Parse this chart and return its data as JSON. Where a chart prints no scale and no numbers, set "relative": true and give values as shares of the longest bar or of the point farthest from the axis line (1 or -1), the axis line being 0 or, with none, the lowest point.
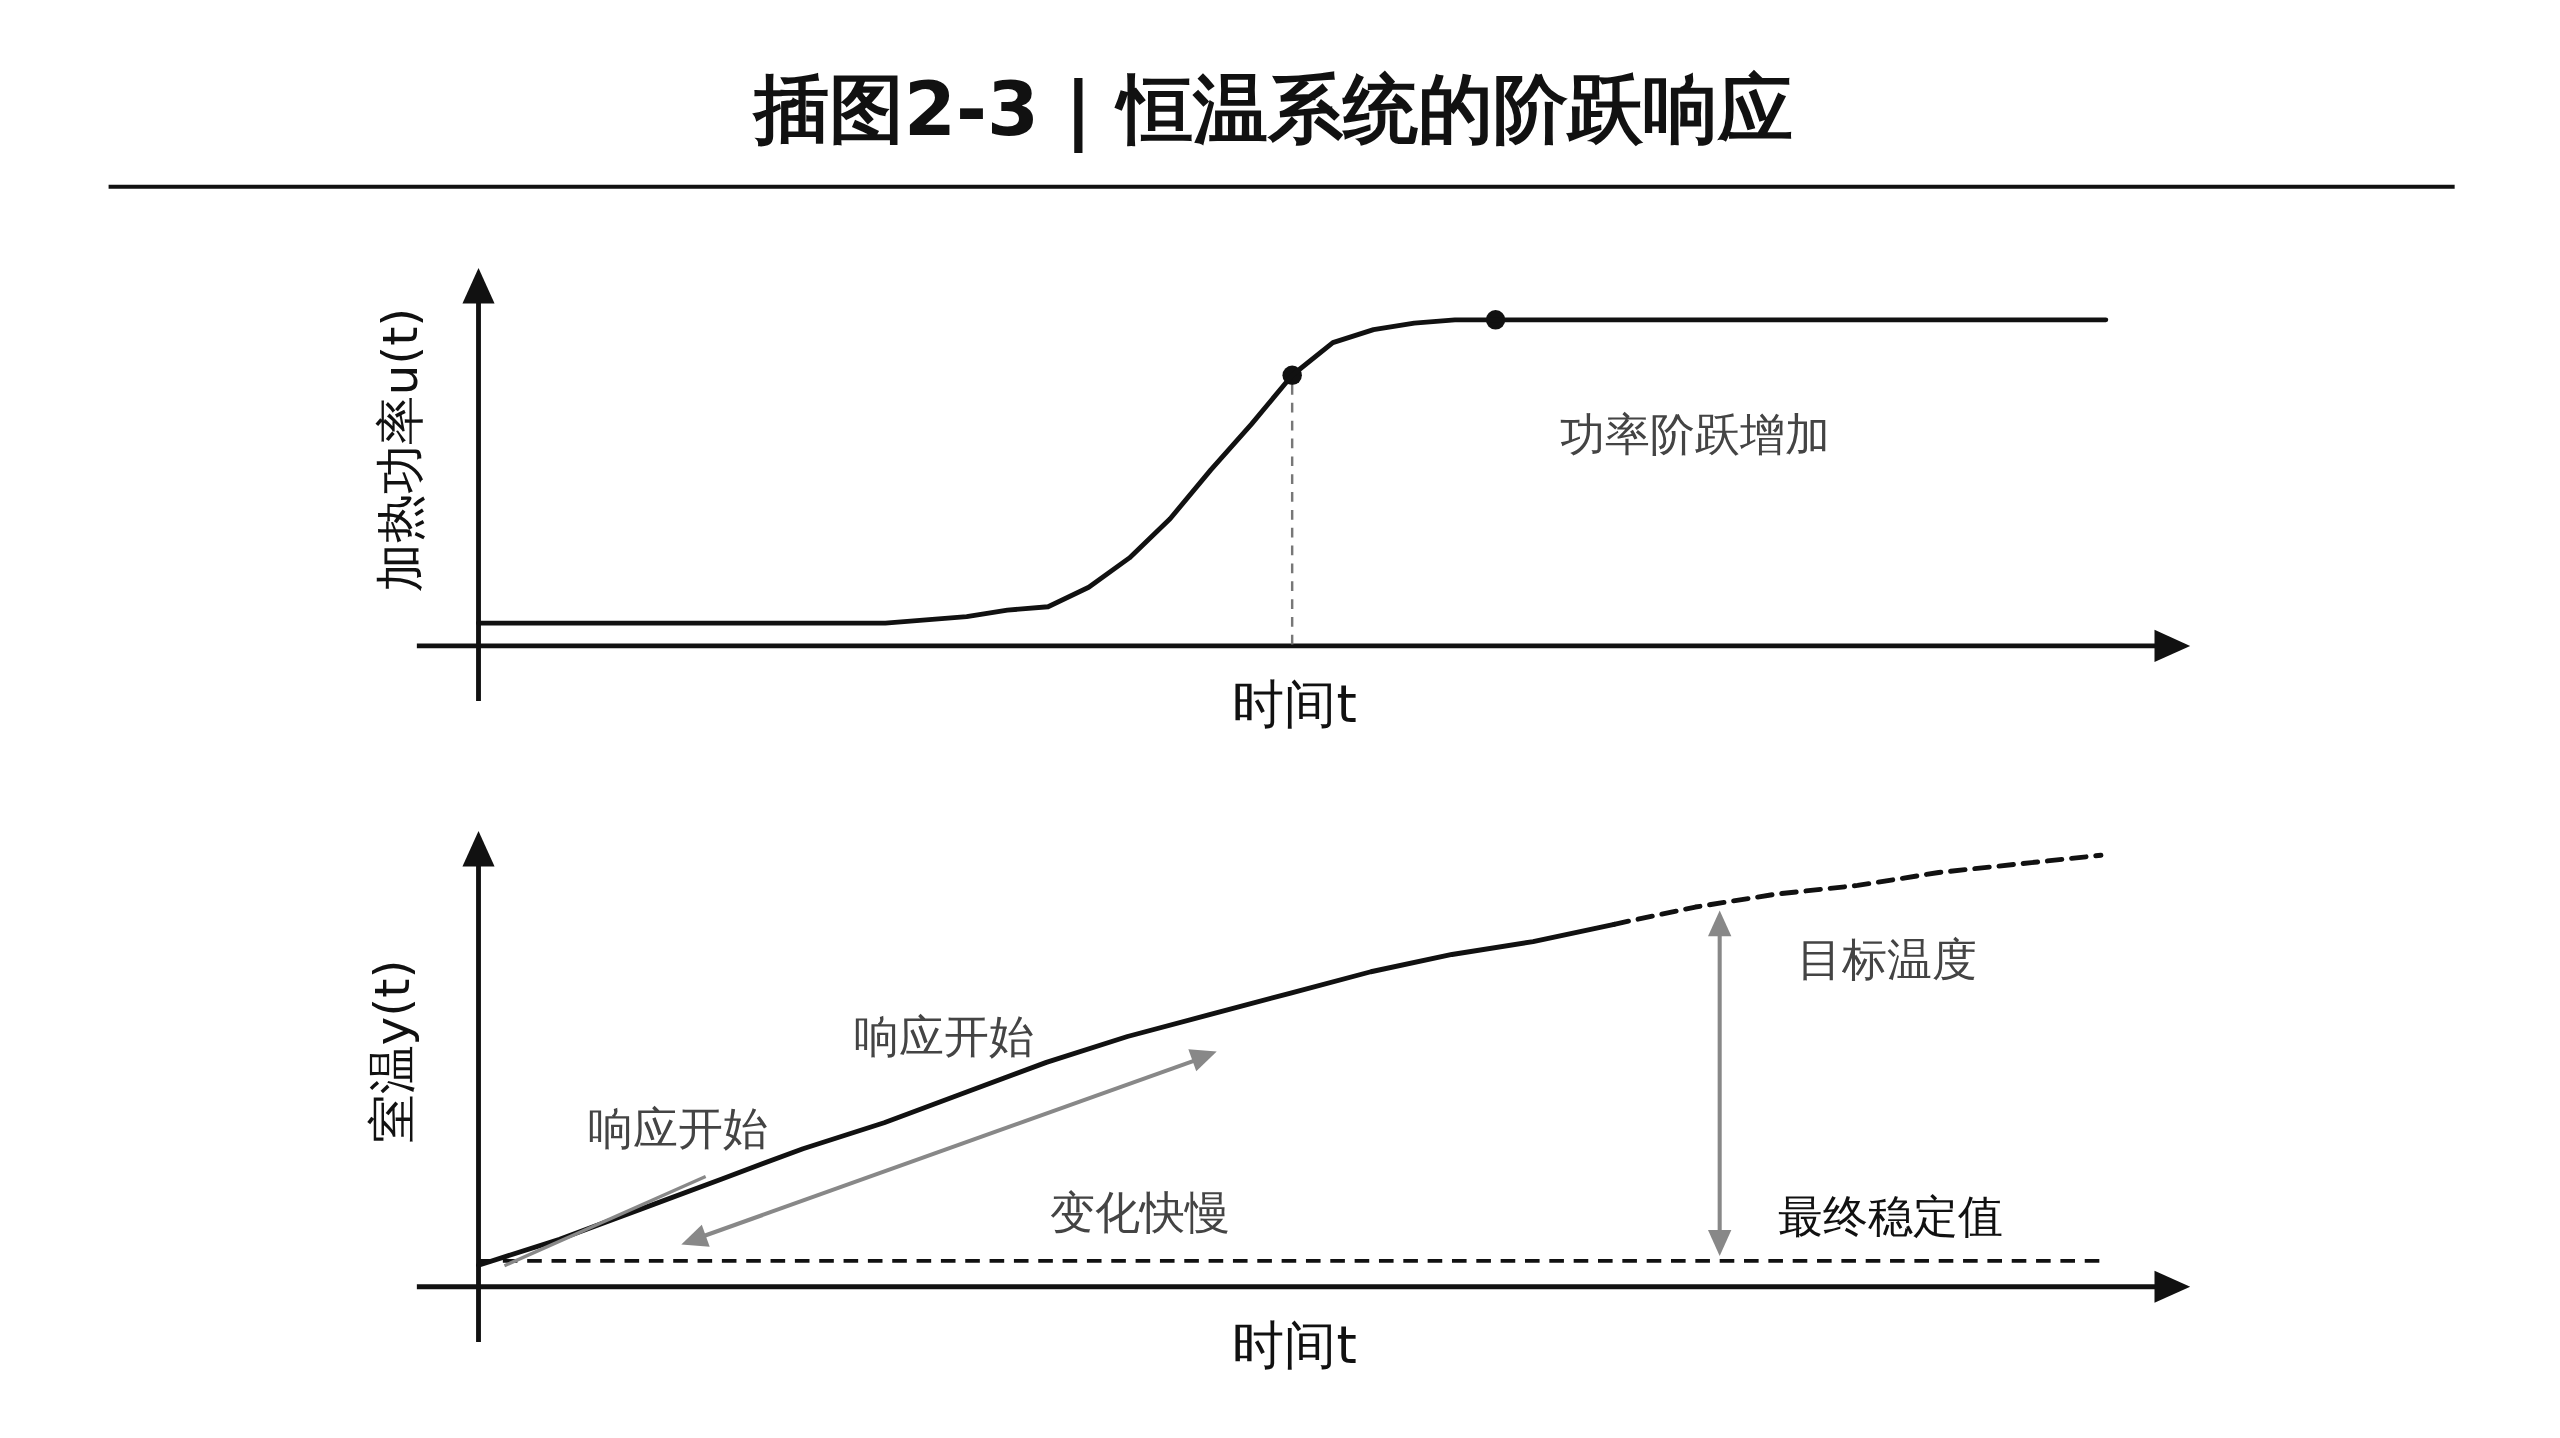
{
  "chart_data": [
    {
      "type": "line",
      "title": "插图2-3 | 恒温系统的阶跃响应",
      "xlabel": "时间t",
      "ylabel": "加热功率u(t)",
      "relative": true,
      "categories": [
        null,
        null,
        null,
        null,
        null,
        null,
        null,
        null,
        null,
        null,
        null,
        null,
        null,
        null,
        null,
        null,
        null,
        null,
        null,
        null,
        null,
        null,
        null,
        null,
        null,
        null,
        null,
        null,
        null,
        null,
        null,
        null,
        null,
        null,
        null,
        null,
        null,
        null,
        null,
        null,
        null
      ],
      "series": [
        {
          "type": "line",
          "color": "#111111",
          "line_style": "solid",
          "values": [
            0.07,
            0.07,
            0.07,
            0.07,
            0.07,
            0.07,
            0.07,
            0.07,
            0.07,
            0.07,
            0.07,
            0.08,
            0.09,
            0.11,
            0.12,
            0.18,
            0.27,
            0.39,
            0.54,
            0.68,
            0.83,
            0.93,
            0.97,
            0.99,
            1,
            1,
            1,
            1,
            1,
            1,
            1,
            1,
            1,
            1,
            1,
            1,
            1,
            1,
            1,
            1,
            1
          ]
        }
      ],
      "annotations": [
        "功率阶跃增加"
      ]
    },
    {
      "type": "line",
      "xlabel": "时间t",
      "ylabel": "室温y(t)",
      "relative": true,
      "categories": [
        null,
        null,
        null,
        null,
        null,
        null,
        null,
        null,
        null,
        null,
        null,
        null,
        null,
        null,
        null,
        null,
        null,
        null,
        null,
        null,
        null
      ],
      "series": [
        {
          "type": "line",
          "color": "#111111",
          "line_style": "solid",
          "values": [
            0.05,
            0.11,
            0.18,
            0.25,
            0.32,
            0.38,
            0.45,
            0.52,
            0.58,
            0.63,
            0.68,
            0.73,
            0.77,
            0.8,
            0.84,
            null,
            null,
            null,
            null,
            null,
            null
          ]
        },
        {
          "type": "line",
          "color": "#111111",
          "line_style": "dashed",
          "values": [
            null,
            null,
            null,
            null,
            null,
            null,
            null,
            null,
            null,
            null,
            null,
            null,
            null,
            null,
            0.84,
            0.88,
            0.91,
            0.93,
            0.96,
            0.98,
            1
          ]
        }
      ],
      "ref_lines": [
        {
          "axis": "y",
          "value": 0.06,
          "label": "最终稳定值",
          "color": "#111111",
          "line_style": "dashed"
        }
      ],
      "annotations": [
        "目标温度",
        "响应开始",
        "响应开始",
        "变化快慢"
      ]
    }
  ]
}
